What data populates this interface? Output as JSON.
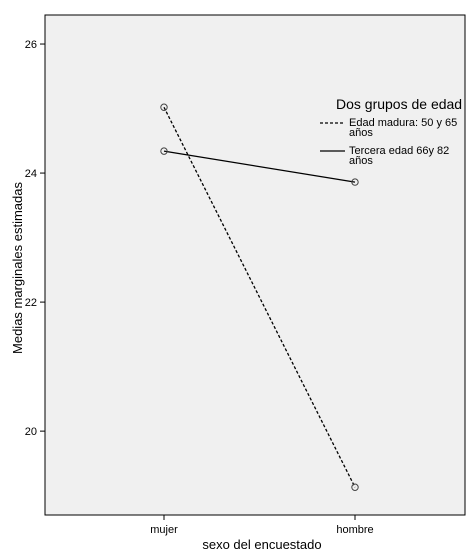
{
  "chart_data": {
    "type": "line",
    "categories": [
      "mujer",
      "hombre"
    ],
    "series": [
      {
        "name": "Edad madura: 50 y 65 años",
        "name_lines": [
          "Edad madura: 50 y 65",
          "años"
        ],
        "values": [
          25.02,
          19.13
        ],
        "line_style": "dashed",
        "color": "#000000"
      },
      {
        "name": "Tercera edad 66y 82 años",
        "name_lines": [
          "Tercera edad 66y 82",
          "años"
        ],
        "values": [
          24.34,
          23.86
        ],
        "line_style": "solid",
        "color": "#000000"
      }
    ],
    "xlabel": "sexo del encuestado",
    "ylabel": "Medias marginales estimadas",
    "ylim": [
      18.7,
      26.45
    ],
    "yticks": [
      20,
      22,
      24,
      26
    ],
    "legend": {
      "title": "Dos grupos de edad",
      "placement": "top-right"
    },
    "plot_background": "#f0f0f0",
    "grid": false
  }
}
